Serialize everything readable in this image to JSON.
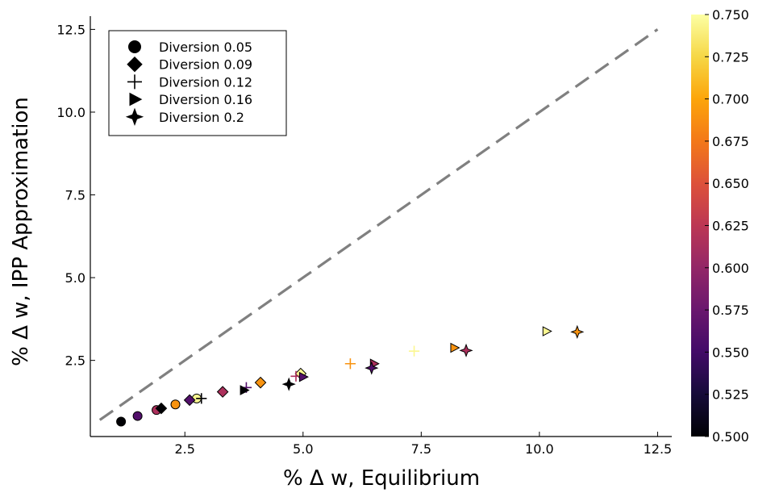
{
  "chart_data": {
    "type": "scatter",
    "title": "",
    "xlabel": "% Δ w, Equilibrium",
    "ylabel": "% Δ w, IPP Approximation",
    "xlim": [
      0.5,
      12.8
    ],
    "ylim": [
      0.2,
      12.9
    ],
    "x_ticks": [
      2.5,
      5.0,
      7.5,
      10.0,
      12.5
    ],
    "x_tick_labels": [
      "2.5",
      "5.0",
      "7.5",
      "10.0",
      "12.5"
    ],
    "y_ticks": [
      2.5,
      5.0,
      7.5,
      10.0,
      12.5
    ],
    "y_tick_labels": [
      "2.5",
      "5.0",
      "7.5",
      "10.0",
      "12.5"
    ],
    "grid": false,
    "legend_position": "top-left",
    "reference_line": {
      "from": [
        0.7,
        0.7
      ],
      "to": [
        12.5,
        12.5
      ],
      "style": "dashed",
      "color": "#808080"
    },
    "colorbar": {
      "colormap": "inferno",
      "min": 0.5,
      "max": 0.75,
      "ticks": [
        0.5,
        0.525,
        0.55,
        0.575,
        0.6,
        0.625,
        0.65,
        0.675,
        0.7,
        0.725,
        0.75
      ],
      "tick_labels": [
        "0.500",
        "0.525",
        "0.550",
        "0.575",
        "0.600",
        "0.625",
        "0.650",
        "0.675",
        "0.700",
        "0.725",
        "0.750"
      ]
    },
    "series": [
      {
        "name": "Diversion 0.05",
        "marker": "circle",
        "points": [
          [
            1.15,
            0.65,
            0.5
          ],
          [
            1.5,
            0.82,
            0.56
          ],
          [
            1.9,
            1.0,
            0.615
          ],
          [
            2.3,
            1.17,
            0.69
          ],
          [
            2.75,
            1.35,
            0.745
          ]
        ]
      },
      {
        "name": "Diversion 0.09",
        "marker": "diamond",
        "points": [
          [
            2.0,
            1.05,
            0.5
          ],
          [
            2.6,
            1.3,
            0.56
          ],
          [
            3.3,
            1.55,
            0.615
          ],
          [
            4.1,
            1.83,
            0.69
          ],
          [
            4.95,
            2.1,
            0.745
          ]
        ]
      },
      {
        "name": "Diversion 0.12",
        "marker": "cross",
        "points": [
          [
            2.85,
            1.35,
            0.5
          ],
          [
            3.8,
            1.68,
            0.56
          ],
          [
            4.85,
            2.02,
            0.615
          ],
          [
            6.0,
            2.4,
            0.69
          ],
          [
            7.35,
            2.78,
            0.745
          ]
        ]
      },
      {
        "name": "Diversion 0.16",
        "marker": "triangle",
        "points": [
          [
            3.75,
            1.6,
            0.5
          ],
          [
            5.0,
            2.0,
            0.56
          ],
          [
            6.5,
            2.4,
            0.615
          ],
          [
            8.2,
            2.88,
            0.69
          ],
          [
            10.15,
            3.38,
            0.745
          ]
        ]
      },
      {
        "name": "Diversion 0.2",
        "marker": "star4",
        "points": [
          [
            4.7,
            1.78,
            0.5
          ],
          [
            6.45,
            2.27,
            0.56
          ],
          [
            8.45,
            2.8,
            0.615
          ],
          [
            10.8,
            3.36,
            0.69
          ]
        ]
      }
    ]
  }
}
